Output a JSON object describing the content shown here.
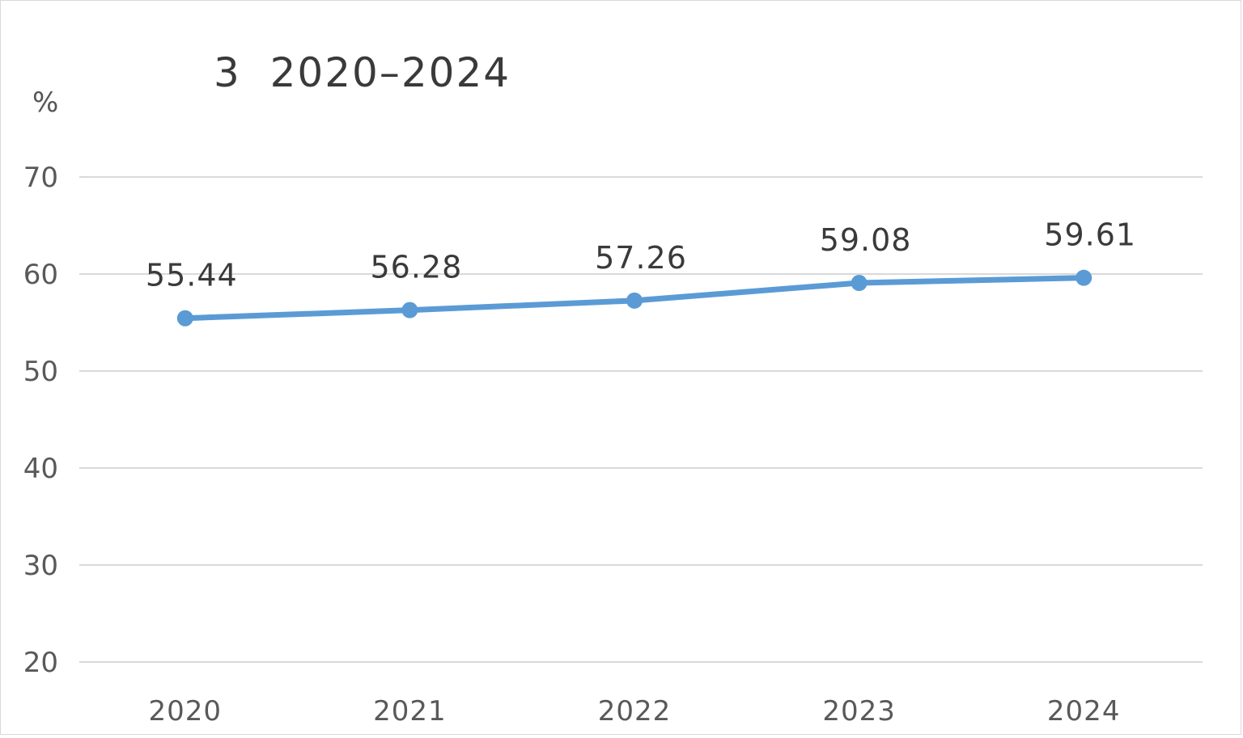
{
  "chart_data": {
    "type": "line",
    "title": "3  2020–2024",
    "unit_label": "%",
    "categories": [
      "2020",
      "2021",
      "2022",
      "2023",
      "2024"
    ],
    "series": [
      {
        "values": [
          55.44,
          56.28,
          57.26,
          59.08,
          59.61
        ],
        "data_labels": [
          "55.44",
          "56.28",
          "57.26",
          "59.08",
          "59.61"
        ],
        "color": "#5b9bd5",
        "marker": "circle"
      }
    ],
    "ylim": [
      20,
      70
    ],
    "yticks": [
      20,
      30,
      40,
      50,
      60,
      70
    ],
    "ytick_labels": [
      "20",
      "30",
      "40",
      "50",
      "60",
      "70"
    ],
    "grid": true,
    "gridline_color": "#d9d9d9"
  }
}
